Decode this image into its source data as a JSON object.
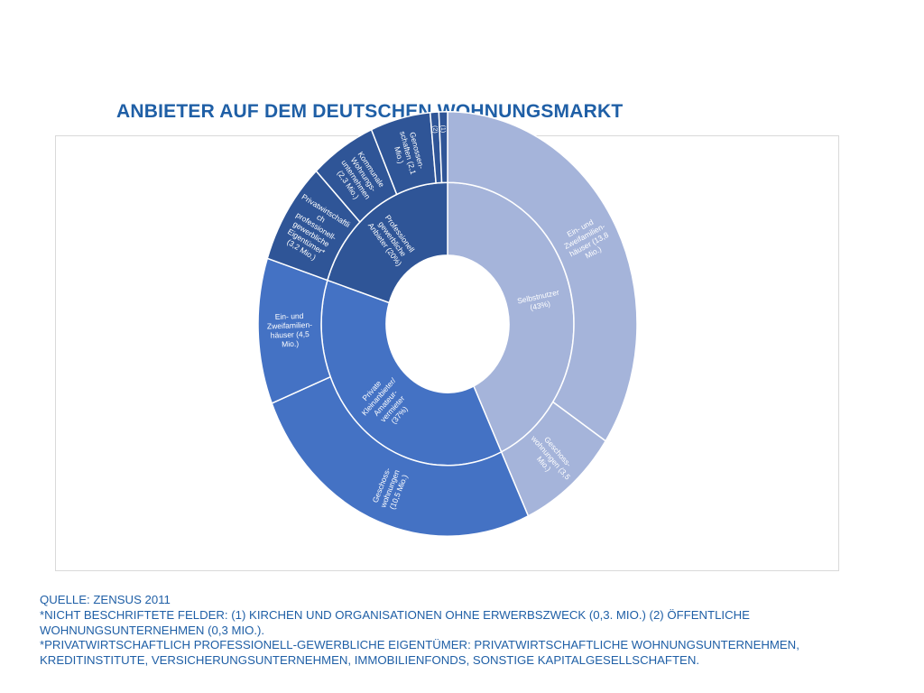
{
  "title": "ANBIETER AUF DEM DEUTSCHEN WOHNUNGSMARKT",
  "colors": {
    "selbstnutzer": "#a5b4da",
    "private": "#4472c4",
    "professionell": "#2f5597",
    "border": "#ffffff",
    "title": "#1f5fa6"
  },
  "chart_data": {
    "type": "sunburst",
    "inner_ring": [
      {
        "label": "Selbstnutzer (43%)",
        "value": 43,
        "color": "#a5b4da"
      },
      {
        "label": "Private Kleinanbieter/ Amateur- vermieter (37%)",
        "value": 37,
        "color": "#4472c4"
      },
      {
        "label": "Professionell gewerbliche Anbieter (20%)",
        "value": 20,
        "color": "#2f5597"
      }
    ],
    "outer_ring": [
      {
        "label": "Ein- und Zweifamilien- häuser (13,8 Mio.)",
        "value": 13.8,
        "parent": 0,
        "color": "#a5b4da"
      },
      {
        "label": "Geschoss- wohnungen (3,5 Mio.)",
        "value": 3.5,
        "parent": 0,
        "color": "#a5b4da"
      },
      {
        "label": "Geschoss- wohnungen (10,5 Mio.)",
        "value": 10.5,
        "parent": 1,
        "color": "#4472c4"
      },
      {
        "label": "Ein- und Zweifamilien- häuser (4,5 Mio.)",
        "value": 4.5,
        "parent": 1,
        "color": "#4472c4"
      },
      {
        "label": "Privatwirtschaftli ch professionell- gewerbliche Eigentümer* (3,2 Mio.)",
        "value": 3.2,
        "parent": 2,
        "color": "#2f5597"
      },
      {
        "label": "Kommunale Wohnungs- unternehmen (2,3 Mio.)",
        "value": 2.3,
        "parent": 2,
        "color": "#2f5597"
      },
      {
        "label": "Genossen- schaften (2,1 Mio.)",
        "value": 2.1,
        "parent": 2,
        "color": "#2f5597"
      },
      {
        "label": "(2)",
        "value": 0.3,
        "parent": 2,
        "color": "#2f5597"
      },
      {
        "label": "(1)",
        "value": 0.3,
        "parent": 2,
        "color": "#2f5597"
      }
    ]
  },
  "footnotes": {
    "line1": "QUELLE: ZENSUS 2011",
    "line2": "*NICHT BESCHRIFTETE FELDER: (1) KIRCHEN UND ORGANISATIONEN OHNE ERWERBSZWECK (0,3. MIO.) (2) ÖFFENTLICHE",
    "line3": "WOHNUNGSUNTERNEHMEN (0,3 MIO.).",
    "line4": "*PRIVATWIRTSCHAFTLICH PROFESSIONELL-GEWERBLICHE EIGENTÜMER: PRIVATWIRTSCHAFTLICHE WOHNUNGSUNTERNEHMEN,",
    "line5": "KREDITINSTITUTE, VERSICHERUNGSUNTERNEHMEN, IMMOBILIENFONDS, SONSTIGE KAPITALGESELLSCHAFTEN."
  }
}
